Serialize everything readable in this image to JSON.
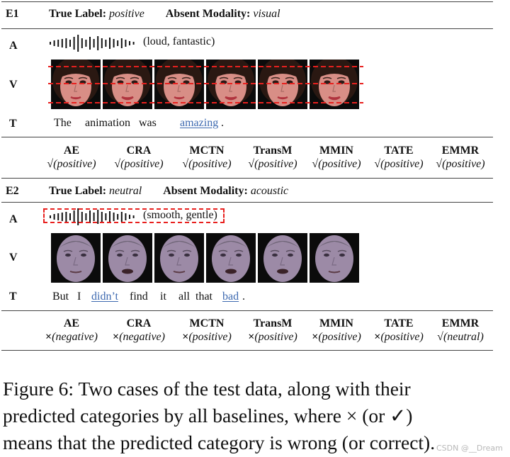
{
  "figure": {
    "cases": [
      {
        "id": "E1",
        "true_label_key": "True Label:",
        "true_label_value": "positive",
        "absent_key": "Absent Modality:",
        "absent_value": "visual",
        "rows": {
          "audio": "A",
          "visual": "V",
          "text": "T"
        },
        "audio_words": "(loud, fantastic)",
        "audio_masked": false,
        "visual_masked": true,
        "text_masked": false,
        "text_words": [
          {
            "w": "The",
            "hl": false
          },
          {
            "w": "animation",
            "hl": false
          },
          {
            "w": "was",
            "hl": false
          },
          {
            "w": "amazing",
            "hl": true
          },
          {
            "w": ".",
            "hl": false
          }
        ],
        "predictions": [
          {
            "model": "AE",
            "mark": "√",
            "label": "positive"
          },
          {
            "model": "CRA",
            "mark": "√",
            "label": "positive"
          },
          {
            "model": "MCTN",
            "mark": "√",
            "label": "positive"
          },
          {
            "model": "TransM",
            "mark": "√",
            "label": "positive"
          },
          {
            "model": "MMIN",
            "mark": "√",
            "label": "positive"
          },
          {
            "model": "TATE",
            "mark": "√",
            "label": "positive"
          },
          {
            "model": "EMMR",
            "mark": "√",
            "label": "positive"
          }
        ]
      },
      {
        "id": "E2",
        "true_label_key": "True Label:",
        "true_label_value": "neutral",
        "absent_key": "Absent Modality:",
        "absent_value": "acoustic",
        "rows": {
          "audio": "A",
          "visual": "V",
          "text": "T"
        },
        "audio_words": "(smooth, gentle)",
        "audio_masked": true,
        "visual_masked": false,
        "text_masked": false,
        "text_words": [
          {
            "w": "But",
            "hl": false
          },
          {
            "w": "I",
            "hl": false
          },
          {
            "w": "didn’t",
            "hl": true
          },
          {
            "w": "find",
            "hl": false
          },
          {
            "w": "it",
            "hl": false
          },
          {
            "w": "all",
            "hl": false
          },
          {
            "w": "that",
            "hl": false
          },
          {
            "w": "bad",
            "hl": true
          },
          {
            "w": ".",
            "hl": false
          }
        ],
        "predictions": [
          {
            "model": "AE",
            "mark": "×",
            "label": "negative"
          },
          {
            "model": "CRA",
            "mark": "×",
            "label": "negative"
          },
          {
            "model": "MCTN",
            "mark": "×",
            "label": "positive"
          },
          {
            "model": "TransM",
            "mark": "×",
            "label": "positive"
          },
          {
            "model": "MMIN",
            "mark": "×",
            "label": "positive"
          },
          {
            "model": "TATE",
            "mark": "×",
            "label": "positive"
          },
          {
            "model": "EMMR",
            "mark": "√",
            "label": "neutral"
          }
        ]
      }
    ]
  },
  "caption": {
    "lines": [
      "Figure 6: Two cases of the test data, along with their",
      "predicted categories by all baselines, where × (or ✓)",
      "means that the predicted category is wrong (or correct)."
    ]
  },
  "watermark": "CSDN @__Dream",
  "colors": {
    "highlight_word": "#3d69b0",
    "mask_dash": "#e8201e",
    "skin_female": "#d88e86",
    "hair_female": "#2a1812",
    "skin_male": "#9c8aa6"
  }
}
